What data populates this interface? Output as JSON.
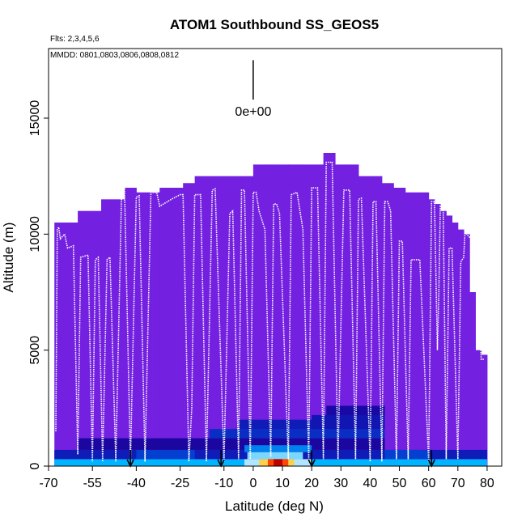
{
  "chart_data": {
    "type": "heatmap",
    "title": "ATOM1 Southbound SS_GEOS5",
    "subtitle_flts": "Flts: 2,3,4,5,6",
    "subtitle_mmdd": "MMDD: 0801,0803,0806,0808,0812",
    "xlabel": "Latitude (deg N)",
    "ylabel": "Altitude (m)",
    "xlim": [
      -70,
      85
    ],
    "ylim": [
      0,
      18000
    ],
    "x_ticks": [
      -70,
      -55,
      -40,
      -25,
      -10,
      0,
      10,
      20,
      30,
      40,
      50,
      60,
      70,
      80
    ],
    "x_ticklabels": [
      "-70",
      "-55",
      "-40",
      "-25",
      "-10",
      "0",
      "10",
      "20",
      "30",
      "40",
      "50",
      "60",
      "70",
      "80"
    ],
    "y_ticks": [
      0,
      5000,
      10000,
      15000
    ],
    "y_ticklabels": [
      "0",
      "5000",
      "10000",
      "15000"
    ],
    "colorbar_marker_label": "0e+00",
    "colorbar_marker_x": 0,
    "colorbar_marker_y": [
      15800,
      17500
    ],
    "column_tops": [
      [
        -68,
        -64,
        10500
      ],
      [
        -64,
        -60,
        10500
      ],
      [
        -60,
        -56,
        11000
      ],
      [
        -56,
        -52,
        11000
      ],
      [
        -52,
        -48,
        11500
      ],
      [
        -48,
        -44,
        11500
      ],
      [
        -44,
        -40,
        12000
      ],
      [
        -40,
        -36,
        11800
      ],
      [
        -36,
        -32,
        11800
      ],
      [
        -32,
        -28,
        12000
      ],
      [
        -28,
        -24,
        12000
      ],
      [
        -24,
        -20,
        12200
      ],
      [
        -20,
        -16,
        12500
      ],
      [
        -16,
        -12,
        12500
      ],
      [
        -12,
        -8,
        12500
      ],
      [
        -8,
        -4,
        12500
      ],
      [
        -4,
        0,
        12500
      ],
      [
        0,
        4,
        13000
      ],
      [
        4,
        8,
        13000
      ],
      [
        8,
        12,
        13000
      ],
      [
        12,
        16,
        13000
      ],
      [
        16,
        20,
        13000
      ],
      [
        20,
        24,
        13000
      ],
      [
        24,
        28,
        13500
      ],
      [
        28,
        32,
        13000
      ],
      [
        32,
        36,
        13000
      ],
      [
        36,
        40,
        12500
      ],
      [
        40,
        44,
        12500
      ],
      [
        44,
        48,
        12200
      ],
      [
        48,
        52,
        12000
      ],
      [
        52,
        56,
        11800
      ],
      [
        56,
        60,
        11800
      ],
      [
        60,
        62,
        11500
      ],
      [
        62,
        64,
        11300
      ],
      [
        64,
        66,
        11000
      ],
      [
        66,
        68,
        10800
      ],
      [
        68,
        70,
        10500
      ],
      [
        70,
        72,
        10200
      ],
      [
        72,
        74,
        10000
      ],
      [
        74,
        76,
        7500
      ],
      [
        76,
        78,
        5000
      ],
      [
        78,
        80,
        4800
      ]
    ],
    "low_level_cells": [
      {
        "x": [
          -68,
          80
        ],
        "y": [
          0,
          300
        ],
        "value": 0.55
      },
      {
        "x": [
          -68,
          80
        ],
        "y": [
          300,
          700
        ],
        "value": 0.2
      },
      {
        "x": [
          -60,
          45
        ],
        "y": [
          700,
          1200
        ],
        "value": 0.1
      },
      {
        "x": [
          -15,
          45
        ],
        "y": [
          1200,
          1600
        ],
        "value": 0.25
      },
      {
        "x": [
          -5,
          25
        ],
        "y": [
          1600,
          2000
        ],
        "value": 0.2
      },
      {
        "x": [
          -3,
          20
        ],
        "y": [
          600,
          900
        ],
        "value": 0.45
      },
      {
        "x": [
          -2,
          17
        ],
        "y": [
          300,
          600
        ],
        "value": 0.62
      },
      {
        "x": [
          -3,
          20
        ],
        "y": [
          0,
          300
        ],
        "value": 0.65
      },
      {
        "x": [
          2,
          14
        ],
        "y": [
          0,
          300
        ],
        "value": 0.78
      },
      {
        "x": [
          5,
          12
        ],
        "y": [
          0,
          300
        ],
        "value": 0.9
      },
      {
        "x": [
          7,
          10
        ],
        "y": [
          0,
          300
        ],
        "value": 1.0
      },
      {
        "x": [
          20,
          45
        ],
        "y": [
          1600,
          2200
        ],
        "value": 0.18
      },
      {
        "x": [
          25,
          45
        ],
        "y": [
          2200,
          2600
        ],
        "value": 0.12
      },
      {
        "x": [
          -40,
          -20
        ],
        "y": [
          300,
          700
        ],
        "value": 0.3
      },
      {
        "x": [
          45,
          60
        ],
        "y": [
          300,
          700
        ],
        "value": 0.3
      }
    ],
    "flight_track": [
      [
        -67.5,
        1500
      ],
      [
        -67,
        10200
      ],
      [
        -66.5,
        10300
      ],
      [
        -66,
        9800
      ],
      [
        -64.5,
        10000
      ],
      [
        -63.5,
        9400
      ],
      [
        -61.5,
        9500
      ],
      [
        -60,
        500
      ],
      [
        -59,
        9000
      ],
      [
        -56.5,
        9100
      ],
      [
        -55,
        200
      ],
      [
        -54,
        8900
      ],
      [
        -53,
        9000
      ],
      [
        -51.5,
        200
      ],
      [
        -50,
        8900
      ],
      [
        -49,
        9000
      ],
      [
        -47,
        200
      ],
      [
        -45,
        11900
      ],
      [
        -44,
        11950
      ],
      [
        -42,
        200
      ],
      [
        -40,
        11600
      ],
      [
        -39,
        11650
      ],
      [
        -37,
        200
      ],
      [
        -35,
        11800
      ],
      [
        -33,
        11800
      ],
      [
        -32,
        11200
      ],
      [
        -28,
        11500
      ],
      [
        -25,
        11700
      ],
      [
        -24,
        11700
      ],
      [
        -22,
        200
      ],
      [
        -21,
        2500
      ],
      [
        -20,
        11700
      ],
      [
        -18,
        11700
      ],
      [
        -16,
        200
      ],
      [
        -14,
        11900
      ],
      [
        -13,
        11950
      ],
      [
        -10,
        200
      ],
      [
        -8,
        10900
      ],
      [
        -7,
        11000
      ],
      [
        -5,
        300
      ],
      [
        -4,
        11900
      ],
      [
        -3,
        11900
      ],
      [
        -1,
        300
      ],
      [
        0,
        11800
      ],
      [
        1,
        11800
      ],
      [
        2,
        11000
      ],
      [
        4,
        10200
      ],
      [
        6,
        400
      ],
      [
        7,
        11300
      ],
      [
        8,
        11300
      ],
      [
        9,
        10900
      ],
      [
        12,
        300
      ],
      [
        13,
        11700
      ],
      [
        15,
        11800
      ],
      [
        17,
        10200
      ],
      [
        19,
        300
      ],
      [
        20,
        12000
      ],
      [
        22,
        12000
      ],
      [
        24,
        300
      ],
      [
        25,
        13100
      ],
      [
        27,
        13100
      ],
      [
        29,
        300
      ],
      [
        31,
        11900
      ],
      [
        33,
        11900
      ],
      [
        35,
        300
      ],
      [
        36,
        11500
      ],
      [
        37,
        11550
      ],
      [
        40,
        200
      ],
      [
        41,
        11400
      ],
      [
        42,
        11400
      ],
      [
        44,
        200
      ],
      [
        45,
        11400
      ],
      [
        46,
        11400
      ],
      [
        47,
        11000
      ],
      [
        49,
        300
      ],
      [
        50,
        9700
      ],
      [
        51,
        9700
      ],
      [
        53,
        300
      ],
      [
        54,
        8900
      ],
      [
        57,
        8900
      ],
      [
        60,
        200
      ],
      [
        61,
        11400
      ],
      [
        62,
        11400
      ],
      [
        63,
        5000
      ],
      [
        63.5,
        7500
      ],
      [
        64,
        11200
      ],
      [
        65,
        11150
      ],
      [
        66,
        300
      ],
      [
        67,
        9400
      ],
      [
        68,
        9400
      ],
      [
        70,
        300
      ],
      [
        71,
        8800
      ],
      [
        72,
        9000
      ],
      [
        72.5,
        10200
      ],
      [
        73,
        10000
      ],
      [
        76,
        9600
      ],
      [
        77,
        7500
      ],
      [
        78,
        4600
      ],
      [
        79,
        4600
      ]
    ],
    "profile_arrows_x": [
      -42,
      -11,
      20,
      61
    ]
  }
}
